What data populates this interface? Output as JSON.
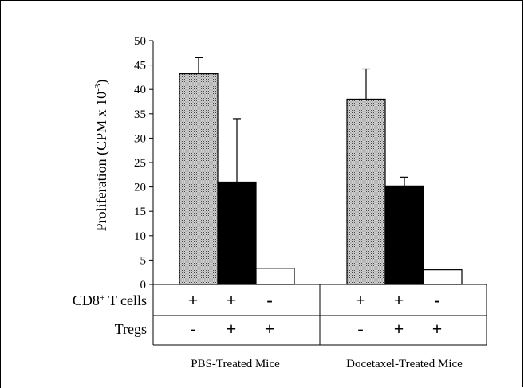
{
  "chart_data": {
    "type": "bar",
    "ylabel": "Proliferation (CPM x 10",
    "ylabel_sup": "-3",
    "ylabel_end": ")",
    "ylim": [
      0,
      50
    ],
    "yticks": [
      0,
      5,
      10,
      15,
      20,
      25,
      30,
      35,
      40,
      45,
      50
    ],
    "grid": false,
    "groups": [
      {
        "name": "PBS-Treated Mice",
        "bars": [
          {
            "value": 43.2,
            "error": 3.3,
            "fill": "dotted-gray"
          },
          {
            "value": 21.0,
            "error": 13.0,
            "fill": "black"
          },
          {
            "value": 3.3,
            "error": 0,
            "fill": "white"
          }
        ]
      },
      {
        "name": "Docetaxel-Treated Mice",
        "bars": [
          {
            "value": 38.0,
            "error": 6.2,
            "fill": "dotted-gray"
          },
          {
            "value": 20.2,
            "error": 1.8,
            "fill": "black"
          },
          {
            "value": 3.0,
            "error": 0,
            "fill": "white"
          }
        ]
      }
    ],
    "table": {
      "rows": [
        {
          "label_main": "CD8",
          "label_sup": "+",
          "label_rest": " T cells",
          "cells": [
            "+",
            "+",
            "-",
            "+",
            "+",
            "-"
          ]
        },
        {
          "label_main": "Tregs",
          "label_sup": "",
          "label_rest": "",
          "cells": [
            "-",
            "+",
            "+",
            "-",
            "+",
            "+"
          ]
        }
      ]
    }
  },
  "colors": {
    "axis": "#000000",
    "solid": "#000000",
    "open": "#ffffff",
    "dot_bg": "#d9d9d9",
    "dot": "#555555"
  }
}
